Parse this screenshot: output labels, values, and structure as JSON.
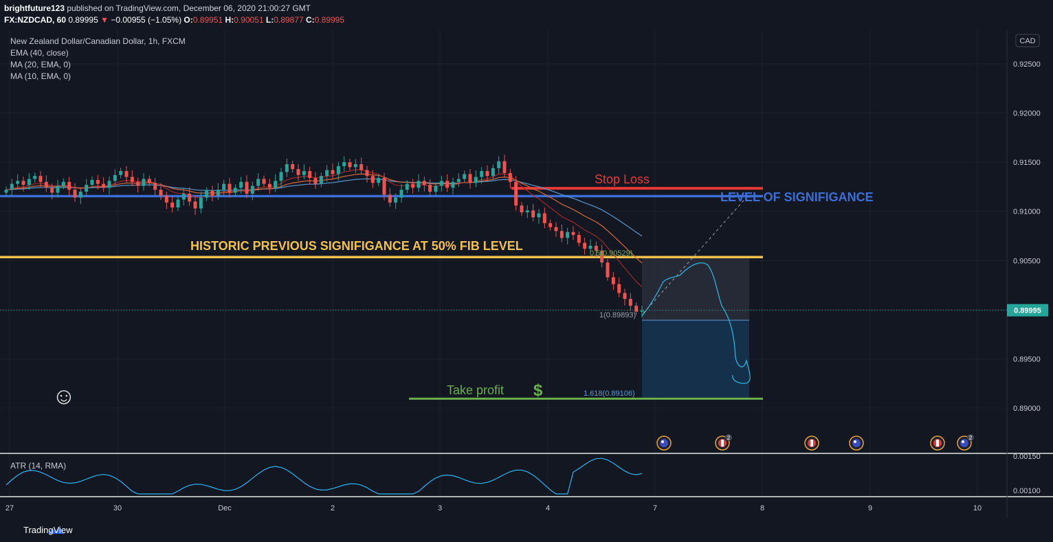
{
  "header": {
    "author": "brightfuture123",
    "published": " published on TradingView.com, December 06, 2020 21:00:27 GMT",
    "symbol": "FX:NZDCAD, 60",
    "last": "0.89995",
    "change": "−0.00955 (−1.05%)",
    "o_label": "O:",
    "o_val": "0.89951",
    "h_label": "H:",
    "h_val": "0.90051",
    "l_label": "L:",
    "l_val": "0.89877",
    "c_label": "C:",
    "c_val": "0.89995"
  },
  "legend": {
    "title": "New Zealand Dollar/Canadian Dollar, 1h, FXCM",
    "ema40": "EMA (40, close)",
    "ma20": "MA (20, EMA, 0)",
    "ma10": "MA (10, EMA, 0)",
    "atr": "ATR (14, RMA)"
  },
  "footer": {
    "brand": "TradingView"
  },
  "chart_data": {
    "type": "candlestick",
    "currency_label": "CAD",
    "y_ticks": [
      "0.92500",
      "0.92000",
      "0.91500",
      "0.91000",
      "0.90500",
      "0.90000",
      "0.89500",
      "0.89000"
    ],
    "ylim": [
      0.887,
      0.928
    ],
    "last_price_label": "0.89995",
    "last_price": 0.89995,
    "x_ticks": [
      "27",
      "30",
      "Dec",
      "2",
      "3",
      "4",
      "7",
      "8",
      "9",
      "10"
    ],
    "atr_ticks": [
      "0.00150",
      "0.00100"
    ],
    "atr_ylim": [
      0.00085,
      0.00165
    ],
    "close_series": [
      0.9122,
      0.9128,
      0.9131,
      0.9127,
      0.9133,
      0.9136,
      0.913,
      0.9124,
      0.9119,
      0.9126,
      0.913,
      0.9122,
      0.9114,
      0.912,
      0.9127,
      0.9132,
      0.9128,
      0.9124,
      0.9131,
      0.9137,
      0.9141,
      0.9135,
      0.913,
      0.9126,
      0.9133,
      0.9129,
      0.9122,
      0.9116,
      0.9109,
      0.9104,
      0.9112,
      0.9118,
      0.911,
      0.9103,
      0.9114,
      0.9121,
      0.9116,
      0.9122,
      0.9128,
      0.9119,
      0.9124,
      0.913,
      0.9118,
      0.9126,
      0.9133,
      0.9128,
      0.9124,
      0.9131,
      0.914,
      0.9148,
      0.9143,
      0.9137,
      0.9141,
      0.9134,
      0.9128,
      0.9136,
      0.9142,
      0.9138,
      0.9146,
      0.915,
      0.9145,
      0.9148,
      0.9142,
      0.9136,
      0.9129,
      0.9134,
      0.9117,
      0.9109,
      0.9114,
      0.9122,
      0.9128,
      0.9124,
      0.9131,
      0.9127,
      0.912,
      0.9126,
      0.9131,
      0.9124,
      0.913,
      0.9133,
      0.9138,
      0.9129,
      0.9135,
      0.9141,
      0.9136,
      0.9144,
      0.9151,
      0.9139,
      0.913,
      0.9106,
      0.9099,
      0.9101,
      0.9094,
      0.9098,
      0.9088,
      0.9084,
      0.908,
      0.9073,
      0.9079,
      0.9076,
      0.9068,
      0.9062,
      0.9065,
      0.906,
      0.9048,
      0.9033,
      0.9026,
      0.9017,
      0.9011,
      0.9004,
      0.8998,
      0.8999
    ],
    "series": [
      {
        "name": "EMA (40, close)",
        "color": "#5b9bd5"
      },
      {
        "name": "MA (20, EMA, 0)",
        "color": "#e06b3c"
      },
      {
        "name": "MA (10, EMA, 0)",
        "color": "#a52a2a"
      }
    ],
    "levels": [
      {
        "label": "Stop Loss",
        "price": 0.91235,
        "color": "#e53935"
      },
      {
        "label": "LEVEL OF SIGNIFIGANCE",
        "price": 0.91155,
        "color": "#3b6fd6"
      },
      {
        "label": "HISTORIC PREVIOUS SIGNIFIGANCE AT 50% FIB LEVEL",
        "price": 0.90535,
        "color": "#f2c14e"
      },
      {
        "label": "Take profit",
        "price": 0.89095,
        "color": "#6ab04c"
      }
    ],
    "take_profit_symbol": "$",
    "fib_labels": {
      "f05": "0.5(0.90529)",
      "f1": "1(0.89893)",
      "f1618": "1.618(0.89106)"
    },
    "position": {
      "top_price": 0.90535,
      "entry_price": 0.89893,
      "bottom_price": 0.89106
    },
    "annotation_note": "☺"
  }
}
